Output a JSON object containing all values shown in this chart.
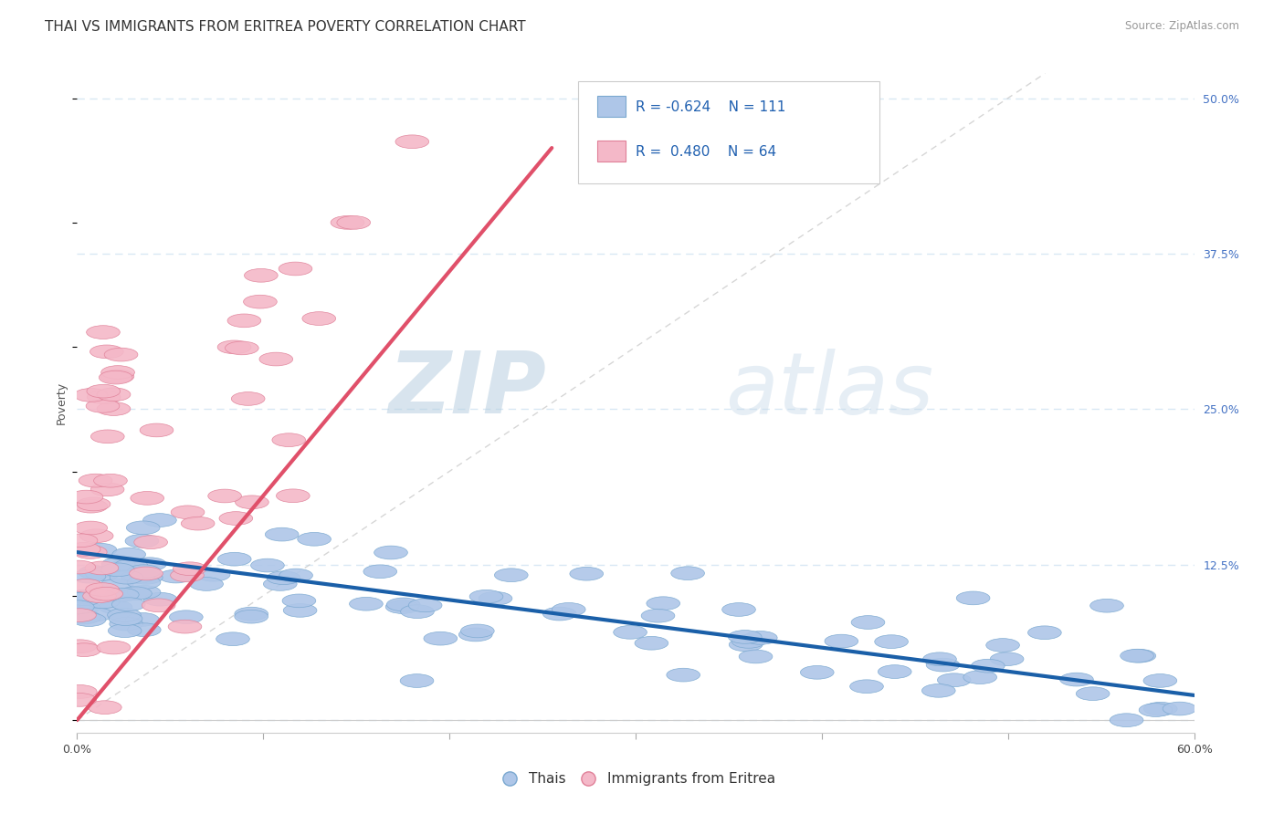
{
  "title": "THAI VS IMMIGRANTS FROM ERITREA POVERTY CORRELATION CHART",
  "source_text": "Source: ZipAtlas.com",
  "xlabel": "",
  "ylabel": "Poverty",
  "xlim": [
    0.0,
    0.6
  ],
  "ylim": [
    -0.01,
    0.52
  ],
  "xticks": [
    0.0,
    0.1,
    0.2,
    0.3,
    0.4,
    0.5,
    0.6
  ],
  "xticklabels": [
    "0.0%",
    "",
    "",
    "",
    "",
    "",
    "60.0%"
  ],
  "yticks": [
    0.0,
    0.125,
    0.25,
    0.375,
    0.5
  ],
  "yticklabels": [
    "",
    "12.5%",
    "25.0%",
    "37.5%",
    "50.0%"
  ],
  "blue_color": "#aec6e8",
  "blue_edge_color": "#7aa8d0",
  "blue_line_color": "#1a5fa8",
  "pink_color": "#f4b8c8",
  "pink_edge_color": "#e08098",
  "pink_line_color": "#e0506a",
  "ref_line_color": "#cccccc",
  "legend_R_blue": "-0.624",
  "legend_N_blue": "111",
  "legend_R_pink": "0.480",
  "legend_N_pink": "64",
  "legend_label_blue": "Thais",
  "legend_label_pink": "Immigrants from Eritrea",
  "watermark_zip": "ZIP",
  "watermark_atlas": "atlas",
  "grid_color": "#d8e8f4",
  "background_color": "#ffffff",
  "title_fontsize": 11,
  "axis_label_fontsize": 9,
  "tick_fontsize": 9,
  "tick_color": "#4472c4",
  "blue_line_start_y": 0.135,
  "blue_line_end_y": 0.02,
  "pink_line_start_x": 0.0,
  "pink_line_start_y": 0.0,
  "pink_line_end_x": 0.255,
  "pink_line_end_y": 0.46
}
